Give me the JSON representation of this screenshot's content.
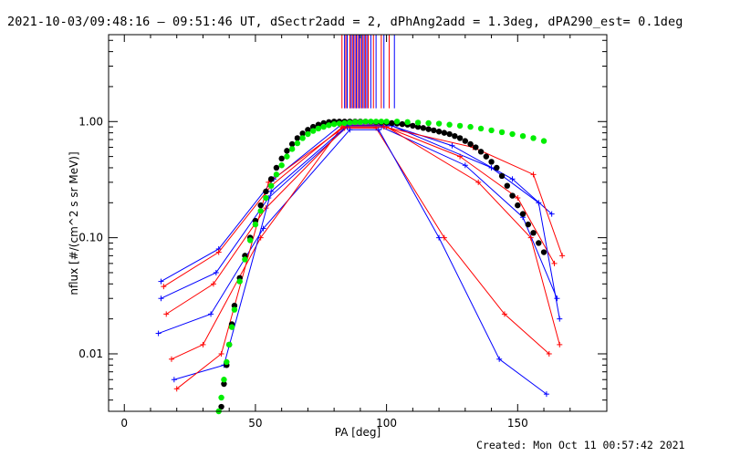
{
  "title": "2021-10-03/09:48:16 – 09:51:46 UT, dSectr2add = 2, dPhAng2add = 1.3deg, dPA290_est=  0.1deg",
  "footer": "Created: Mon Oct 11 00:57:42 2021",
  "chart_data": {
    "type": "line",
    "xlabel": "PA [deg]",
    "ylabel": "nflux [#/(cm^2 s sr MeV)]",
    "xlim": [
      -6,
      184
    ],
    "ylim": [
      0.0032,
      5.6
    ],
    "yscale": "log",
    "xticks": [
      0,
      50,
      100,
      150
    ],
    "yticks": [
      0.01,
      0.1,
      1.0
    ],
    "ytick_labels": [
      "0.01",
      "0.10",
      "1.00"
    ],
    "grid": false,
    "colors": {
      "measured_a": "#0000ff",
      "measured_b": "#ff0000",
      "model_black": "#000000",
      "model_green": "#00ee00"
    },
    "series": [
      {
        "style": "black-circles",
        "x": [
          37,
          38,
          39,
          40,
          41,
          42,
          44,
          46,
          48,
          50,
          52,
          54,
          56,
          58,
          60,
          62,
          64,
          66,
          68,
          70,
          72,
          74,
          76,
          78,
          80,
          82,
          84,
          86,
          88,
          90,
          92,
          94,
          96,
          98,
          100,
          102,
          104,
          106,
          108,
          110,
          112,
          114,
          116,
          118,
          120,
          122,
          124,
          126,
          128,
          130,
          132,
          134,
          136,
          138,
          140,
          142,
          144,
          146,
          148,
          150,
          152,
          154,
          156,
          158,
          160
        ],
        "y": [
          0.0035,
          0.0055,
          0.008,
          0.012,
          0.018,
          0.026,
          0.045,
          0.07,
          0.1,
          0.14,
          0.19,
          0.25,
          0.32,
          0.4,
          0.48,
          0.56,
          0.64,
          0.72,
          0.79,
          0.85,
          0.9,
          0.94,
          0.97,
          0.99,
          1.0,
          1.0,
          1.0,
          1.0,
          1.0,
          1.0,
          1.0,
          0.995,
          0.99,
          0.985,
          0.98,
          0.97,
          0.96,
          0.95,
          0.94,
          0.92,
          0.9,
          0.88,
          0.86,
          0.84,
          0.82,
          0.8,
          0.78,
          0.75,
          0.72,
          0.68,
          0.64,
          0.6,
          0.55,
          0.5,
          0.45,
          0.4,
          0.34,
          0.28,
          0.23,
          0.19,
          0.16,
          0.13,
          0.11,
          0.09,
          0.075
        ]
      },
      {
        "style": "green-circles",
        "x": [
          36,
          37,
          38,
          39,
          40,
          41,
          42,
          44,
          46,
          48,
          50,
          52,
          54,
          56,
          58,
          60,
          62,
          64,
          66,
          68,
          70,
          72,
          74,
          76,
          78,
          80,
          82,
          84,
          86,
          88,
          90,
          92,
          94,
          96,
          98,
          100,
          104,
          108,
          112,
          116,
          120,
          124,
          128,
          132,
          136,
          140,
          144,
          148,
          152,
          156,
          160
        ],
        "y": [
          0.0032,
          0.0042,
          0.006,
          0.0085,
          0.012,
          0.017,
          0.024,
          0.042,
          0.065,
          0.095,
          0.13,
          0.17,
          0.22,
          0.28,
          0.35,
          0.42,
          0.5,
          0.58,
          0.65,
          0.72,
          0.78,
          0.83,
          0.87,
          0.9,
          0.93,
          0.95,
          0.96,
          0.97,
          0.98,
          0.99,
          0.99,
          1.0,
          1.0,
          1.0,
          1.0,
          1.0,
          1.0,
          0.99,
          0.98,
          0.97,
          0.96,
          0.94,
          0.92,
          0.9,
          0.87,
          0.84,
          0.81,
          0.78,
          0.75,
          0.72,
          0.68
        ]
      },
      {
        "style": "measured",
        "color": "blue",
        "x": [
          14,
          36,
          57,
          83,
          100,
          125,
          148,
          163
        ],
        "y": [
          0.042,
          0.08,
          0.32,
          0.95,
          0.95,
          0.62,
          0.32,
          0.16
        ]
      },
      {
        "style": "measured",
        "color": "red",
        "x": [
          15,
          36,
          56,
          84,
          98,
          128,
          150,
          164
        ],
        "y": [
          0.038,
          0.075,
          0.28,
          0.93,
          0.93,
          0.5,
          0.22,
          0.06
        ]
      },
      {
        "style": "measured",
        "color": "blue",
        "x": [
          14,
          35,
          55,
          85,
          98,
          130,
          152,
          165
        ],
        "y": [
          0.03,
          0.05,
          0.22,
          0.9,
          0.9,
          0.42,
          0.15,
          0.03
        ]
      },
      {
        "style": "measured",
        "color": "red",
        "x": [
          16,
          34,
          54,
          84,
          96,
          122,
          145,
          162
        ],
        "y": [
          0.022,
          0.04,
          0.18,
          0.88,
          0.88,
          0.1,
          0.022,
          0.01
        ]
      },
      {
        "style": "measured",
        "color": "blue",
        "x": [
          13,
          33,
          53,
          86,
          97,
          120,
          143,
          161
        ],
        "y": [
          0.015,
          0.022,
          0.12,
          0.85,
          0.85,
          0.1,
          0.009,
          0.0045
        ]
      },
      {
        "style": "measured",
        "color": "red",
        "x": [
          18,
          30,
          52,
          83,
          100,
          135,
          155,
          166
        ],
        "y": [
          0.009,
          0.012,
          0.1,
          0.9,
          0.9,
          0.3,
          0.1,
          0.012
        ]
      },
      {
        "style": "measured",
        "color": "blue",
        "x": [
          19,
          38,
          56,
          85,
          102,
          140,
          158,
          166
        ],
        "y": [
          0.006,
          0.008,
          0.25,
          0.92,
          0.92,
          0.4,
          0.2,
          0.02
        ]
      },
      {
        "style": "measured",
        "color": "red",
        "x": [
          20,
          37,
          55,
          84,
          99,
          133,
          156,
          167
        ],
        "y": [
          0.005,
          0.01,
          0.3,
          0.9,
          0.9,
          0.6,
          0.35,
          0.07
        ]
      }
    ],
    "vertical_lines": {
      "x": [
        83,
        84,
        84.5,
        85,
        86,
        86.5,
        87,
        87.5,
        88,
        88.5,
        89,
        89.5,
        90,
        90.5,
        91,
        91.5,
        92,
        92.5,
        93,
        94,
        95,
        96,
        98,
        99,
        101,
        103
      ],
      "y_from": 1.3,
      "y_to": 5.6
    }
  }
}
